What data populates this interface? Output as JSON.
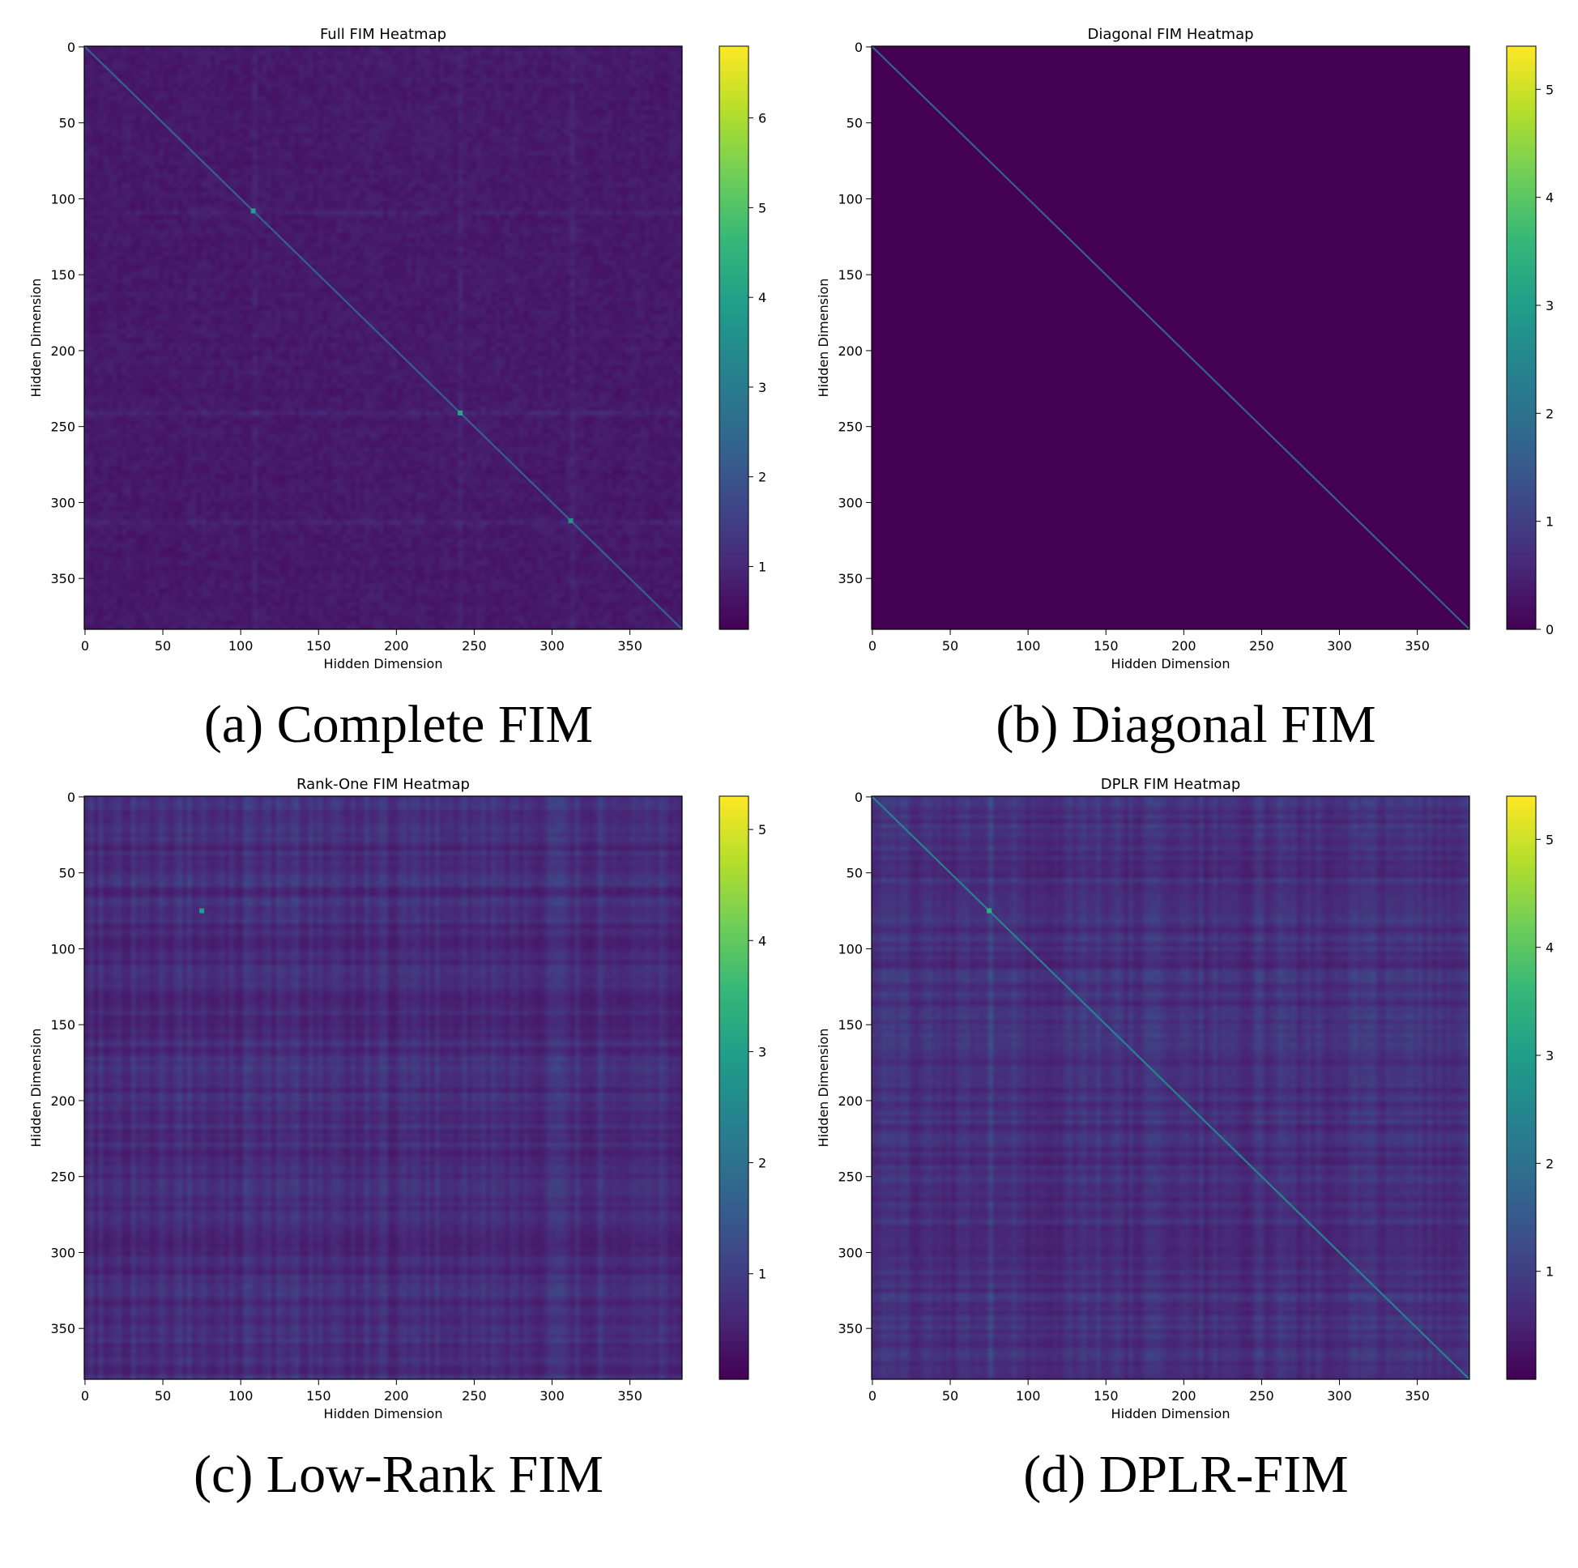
{
  "captions": [
    "(a) Complete FIM",
    "(b) Diagonal FIM",
    "(c) Low-Rank FIM",
    "(d) DPLR-FIM"
  ],
  "colormap": [
    "#440154",
    "#482878",
    "#3e4989",
    "#31688e",
    "#26828e",
    "#1f9e89",
    "#35b779",
    "#6ece58",
    "#b5de2b",
    "#fde725"
  ],
  "chart_data": [
    {
      "type": "heatmap",
      "title": "Full FIM Heatmap",
      "xlabel": "Hidden Dimension",
      "ylabel": "Hidden Dimension",
      "size": 384,
      "xticks": [
        0,
        50,
        100,
        150,
        200,
        250,
        300,
        350
      ],
      "yticks": [
        0,
        50,
        100,
        150,
        200,
        250,
        300,
        350
      ],
      "colorbar": {
        "min": 0.3,
        "max": 6.8,
        "ticks": [
          1,
          2,
          3,
          4,
          5,
          6
        ]
      },
      "structure": "full",
      "background_value": 0.75,
      "diagonal_value": 2.3,
      "highlights": [
        {
          "index": 108,
          "value": 4.0
        },
        {
          "index": 241,
          "value": 4.2
        },
        {
          "index": 312,
          "value": 3.6
        }
      ]
    },
    {
      "type": "heatmap",
      "title": "Diagonal FIM Heatmap",
      "xlabel": "Hidden Dimension",
      "ylabel": "Hidden Dimension",
      "size": 384,
      "xticks": [
        0,
        50,
        100,
        150,
        200,
        250,
        300,
        350
      ],
      "yticks": [
        0,
        50,
        100,
        150,
        200,
        250,
        300,
        350
      ],
      "colorbar": {
        "min": 0.0,
        "max": 5.4,
        "ticks": [
          0,
          1,
          2,
          3,
          4,
          5
        ]
      },
      "structure": "diagonal",
      "background_value": 0.0,
      "diagonal_value": 1.7,
      "highlights": []
    },
    {
      "type": "heatmap",
      "title": "Rank-One FIM Heatmap",
      "xlabel": "Hidden Dimension",
      "ylabel": "Hidden Dimension",
      "size": 384,
      "xticks": [
        0,
        50,
        100,
        150,
        200,
        250,
        300,
        350
      ],
      "yticks": [
        0,
        50,
        100,
        150,
        200,
        250,
        300,
        350
      ],
      "colorbar": {
        "min": 0.05,
        "max": 5.3,
        "ticks": [
          1,
          2,
          3,
          4,
          5
        ]
      },
      "structure": "rank-one",
      "background_value": 0.7,
      "diagonal_value": 0,
      "highlights": [
        {
          "index": 75,
          "value": 3.0
        }
      ]
    },
    {
      "type": "heatmap",
      "title": "DPLR FIM Heatmap",
      "xlabel": "Hidden Dimension",
      "ylabel": "Hidden Dimension",
      "size": 384,
      "xticks": [
        0,
        50,
        100,
        150,
        200,
        250,
        300,
        350
      ],
      "yticks": [
        0,
        50,
        100,
        150,
        200,
        250,
        300,
        350
      ],
      "colorbar": {
        "min": 0.0,
        "max": 5.4,
        "ticks": [
          1,
          2,
          3,
          4,
          5
        ]
      },
      "structure": "dplr",
      "background_value": 0.7,
      "diagonal_value": 2.4,
      "highlights": [
        {
          "index": 75,
          "value": 3.4
        }
      ]
    }
  ]
}
